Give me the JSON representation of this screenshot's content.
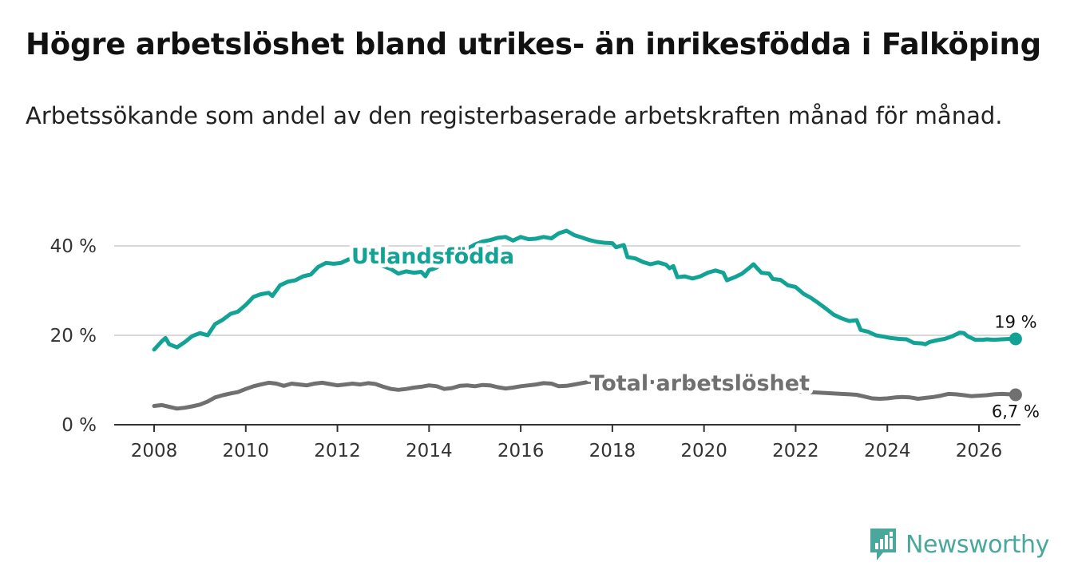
{
  "title": "Högre arbetslöshet bland utrikes- än inrikesfödda i Falköping",
  "subtitle": "Arbetssökande som andel av den registerbaserade arbetskraften månad för månad.",
  "brand": {
    "name": "Newsworthy",
    "icon": "bar-chart-logo-icon"
  },
  "colors": {
    "accent": "#13a396",
    "total": "#707070",
    "grid": "#d9d9d9",
    "axis": "#333333",
    "brand": "#4aa79c"
  },
  "chart_data": {
    "type": "line",
    "title": "Högre arbetslöshet bland utrikes- än inrikesfödda i Falköping",
    "xlabel": "",
    "ylabel": "",
    "xlim": [
      2007.6,
      2026.9
    ],
    "ylim": [
      0,
      40
    ],
    "x_ticks": [
      2008,
      2010,
      2012,
      2014,
      2016,
      2018,
      2020,
      2022,
      2024,
      2026
    ],
    "x_tick_labels": [
      "2008",
      "2010",
      "2012",
      "2014",
      "2016",
      "2018",
      "2020",
      "2022",
      "2024",
      "2026"
    ],
    "y_ticks": [
      0,
      20,
      40
    ],
    "y_tick_labels": [
      "0 %",
      "20 %",
      "40 %"
    ],
    "grid": true,
    "series": [
      {
        "name": "Utlandsfödda",
        "color": "#13a396",
        "end_label": "19 %",
        "points": [
          [
            2008.0,
            16.8
          ],
          [
            2008.17,
            18.7
          ],
          [
            2008.25,
            19.4
          ],
          [
            2008.33,
            18.0
          ],
          [
            2008.5,
            17.3
          ],
          [
            2008.67,
            18.5
          ],
          [
            2008.83,
            19.8
          ],
          [
            2009.0,
            20.5
          ],
          [
            2009.17,
            20.0
          ],
          [
            2009.33,
            22.5
          ],
          [
            2009.5,
            23.5
          ],
          [
            2009.67,
            24.8
          ],
          [
            2009.83,
            25.3
          ],
          [
            2010.0,
            26.8
          ],
          [
            2010.17,
            28.6
          ],
          [
            2010.33,
            29.2
          ],
          [
            2010.5,
            29.5
          ],
          [
            2010.58,
            28.8
          ],
          [
            2010.75,
            31.2
          ],
          [
            2010.92,
            32.0
          ],
          [
            2011.08,
            32.3
          ],
          [
            2011.25,
            33.2
          ],
          [
            2011.42,
            33.6
          ],
          [
            2011.58,
            35.3
          ],
          [
            2011.75,
            36.2
          ],
          [
            2011.92,
            36.0
          ],
          [
            2012.08,
            36.2
          ],
          [
            2012.25,
            37.0
          ],
          [
            2012.42,
            37.3
          ],
          [
            2012.5,
            37.0
          ],
          [
            2012.67,
            37.8
          ],
          [
            2012.83,
            36.2
          ],
          [
            2013.0,
            35.5
          ],
          [
            2013.17,
            34.8
          ],
          [
            2013.33,
            33.8
          ],
          [
            2013.5,
            34.3
          ],
          [
            2013.67,
            34.0
          ],
          [
            2013.83,
            34.2
          ],
          [
            2013.92,
            33.2
          ],
          [
            2014.0,
            34.6
          ],
          [
            2014.08,
            34.8
          ],
          [
            2014.17,
            35.2
          ],
          [
            2014.25,
            35.8
          ],
          [
            2015.0,
            40.3
          ],
          [
            2015.17,
            41.0
          ],
          [
            2015.33,
            41.3
          ],
          [
            2015.5,
            41.8
          ],
          [
            2015.67,
            42.0
          ],
          [
            2015.83,
            41.2
          ],
          [
            2016.0,
            42.0
          ],
          [
            2016.17,
            41.5
          ],
          [
            2016.33,
            41.6
          ],
          [
            2016.5,
            42.0
          ],
          [
            2016.67,
            41.7
          ],
          [
            2016.83,
            42.8
          ],
          [
            2017.0,
            43.4
          ],
          [
            2017.17,
            42.4
          ],
          [
            2017.33,
            41.9
          ],
          [
            2017.5,
            41.3
          ],
          [
            2017.67,
            40.9
          ],
          [
            2017.83,
            40.7
          ],
          [
            2018.0,
            40.6
          ],
          [
            2018.08,
            39.7
          ],
          [
            2018.25,
            40.2
          ],
          [
            2018.33,
            37.5
          ],
          [
            2018.5,
            37.2
          ],
          [
            2018.67,
            36.4
          ],
          [
            2018.83,
            35.9
          ],
          [
            2019.0,
            36.3
          ],
          [
            2019.17,
            35.8
          ],
          [
            2019.25,
            35.0
          ],
          [
            2019.33,
            35.5
          ],
          [
            2019.42,
            33.0
          ],
          [
            2019.58,
            33.2
          ],
          [
            2019.75,
            32.7
          ],
          [
            2019.92,
            33.2
          ],
          [
            2020.08,
            34.0
          ],
          [
            2020.25,
            34.5
          ],
          [
            2020.42,
            34.0
          ],
          [
            2020.5,
            32.3
          ],
          [
            2020.67,
            33.0
          ],
          [
            2020.83,
            33.8
          ],
          [
            2021.0,
            35.2
          ],
          [
            2021.08,
            35.9
          ],
          [
            2021.25,
            34.0
          ],
          [
            2021.42,
            33.8
          ],
          [
            2021.5,
            32.6
          ],
          [
            2021.67,
            32.4
          ],
          [
            2021.83,
            31.2
          ],
          [
            2022.0,
            30.8
          ],
          [
            2022.17,
            29.3
          ],
          [
            2022.33,
            28.4
          ],
          [
            2022.5,
            27.2
          ],
          [
            2022.67,
            25.9
          ],
          [
            2022.83,
            24.6
          ],
          [
            2023.0,
            23.8
          ],
          [
            2023.17,
            23.2
          ],
          [
            2023.33,
            23.4
          ],
          [
            2023.42,
            21.2
          ],
          [
            2023.58,
            20.8
          ],
          [
            2023.75,
            20.0
          ],
          [
            2023.92,
            19.7
          ],
          [
            2024.08,
            19.4
          ],
          [
            2024.25,
            19.2
          ],
          [
            2024.42,
            19.1
          ],
          [
            2024.58,
            18.3
          ],
          [
            2024.75,
            18.2
          ],
          [
            2024.83,
            18.0
          ],
          [
            2024.92,
            18.5
          ],
          [
            2025.08,
            18.9
          ],
          [
            2025.25,
            19.2
          ],
          [
            2025.42,
            19.8
          ],
          [
            2025.58,
            20.6
          ],
          [
            2025.67,
            20.5
          ],
          [
            2025.75,
            19.8
          ],
          [
            2025.92,
            19.0
          ],
          [
            2026.08,
            19.0
          ],
          [
            2026.17,
            19.1
          ],
          [
            2026.33,
            19.0
          ],
          [
            2026.5,
            19.1
          ],
          [
            2026.67,
            19.2
          ],
          [
            2026.8,
            19.2
          ]
        ]
      },
      {
        "name": "Total arbetslöshet",
        "color": "#707070",
        "end_label": "6,7 %",
        "points": [
          [
            2008.0,
            4.2
          ],
          [
            2008.17,
            4.4
          ],
          [
            2008.33,
            4.0
          ],
          [
            2008.5,
            3.6
          ],
          [
            2008.67,
            3.8
          ],
          [
            2008.83,
            4.1
          ],
          [
            2009.0,
            4.5
          ],
          [
            2009.17,
            5.2
          ],
          [
            2009.33,
            6.1
          ],
          [
            2009.5,
            6.6
          ],
          [
            2009.67,
            7.0
          ],
          [
            2009.83,
            7.3
          ],
          [
            2010.0,
            8.0
          ],
          [
            2010.17,
            8.6
          ],
          [
            2010.33,
            9.0
          ],
          [
            2010.5,
            9.4
          ],
          [
            2010.67,
            9.2
          ],
          [
            2010.83,
            8.7
          ],
          [
            2011.0,
            9.2
          ],
          [
            2011.17,
            9.0
          ],
          [
            2011.33,
            8.8
          ],
          [
            2011.5,
            9.2
          ],
          [
            2011.67,
            9.4
          ],
          [
            2011.83,
            9.1
          ],
          [
            2012.0,
            8.8
          ],
          [
            2012.17,
            9.0
          ],
          [
            2012.33,
            9.2
          ],
          [
            2012.5,
            9.0
          ],
          [
            2012.67,
            9.3
          ],
          [
            2012.83,
            9.1
          ],
          [
            2013.0,
            8.5
          ],
          [
            2013.17,
            8.0
          ],
          [
            2013.33,
            7.8
          ],
          [
            2013.5,
            8.0
          ],
          [
            2013.67,
            8.3
          ],
          [
            2013.83,
            8.5
          ],
          [
            2014.0,
            8.8
          ],
          [
            2014.17,
            8.6
          ],
          [
            2014.33,
            8.0
          ],
          [
            2014.5,
            8.2
          ],
          [
            2014.67,
            8.7
          ],
          [
            2014.83,
            8.8
          ],
          [
            2015.0,
            8.6
          ],
          [
            2015.17,
            8.9
          ],
          [
            2015.33,
            8.8
          ],
          [
            2015.5,
            8.4
          ],
          [
            2015.67,
            8.1
          ],
          [
            2015.83,
            8.3
          ],
          [
            2016.0,
            8.6
          ],
          [
            2016.17,
            8.8
          ],
          [
            2016.33,
            9.0
          ],
          [
            2016.5,
            9.3
          ],
          [
            2016.67,
            9.2
          ],
          [
            2016.83,
            8.6
          ],
          [
            2017.0,
            8.7
          ],
          [
            2017.17,
            9.0
          ],
          [
            2017.33,
            9.3
          ],
          [
            2017.5,
            9.6
          ],
          [
            2017.67,
            9.5
          ],
          [
            2017.83,
            9.2
          ],
          [
            2018.0,
            9.6
          ],
          [
            2018.17,
            9.5
          ],
          [
            2018.33,
            9.2
          ],
          [
            2018.5,
            9.5
          ],
          [
            2018.67,
            9.8
          ],
          [
            2018.83,
            9.6
          ],
          [
            2019.0,
            9.3
          ],
          [
            2019.17,
            9.0
          ],
          [
            2019.33,
            9.0
          ],
          [
            2023.0,
            6.9
          ],
          [
            2023.17,
            6.8
          ],
          [
            2023.33,
            6.7
          ],
          [
            2023.5,
            6.3
          ],
          [
            2023.67,
            5.9
          ],
          [
            2023.83,
            5.8
          ],
          [
            2024.0,
            5.9
          ],
          [
            2024.17,
            6.1
          ],
          [
            2024.33,
            6.2
          ],
          [
            2024.5,
            6.1
          ],
          [
            2024.67,
            5.8
          ],
          [
            2024.83,
            6.0
          ],
          [
            2025.0,
            6.2
          ],
          [
            2025.17,
            6.5
          ],
          [
            2025.33,
            6.9
          ],
          [
            2025.5,
            6.8
          ],
          [
            2025.67,
            6.6
          ],
          [
            2025.83,
            6.4
          ],
          [
            2026.0,
            6.5
          ],
          [
            2026.17,
            6.6
          ],
          [
            2026.33,
            6.8
          ],
          [
            2026.5,
            6.9
          ],
          [
            2026.67,
            6.8
          ],
          [
            2026.8,
            6.7
          ]
        ]
      }
    ]
  }
}
